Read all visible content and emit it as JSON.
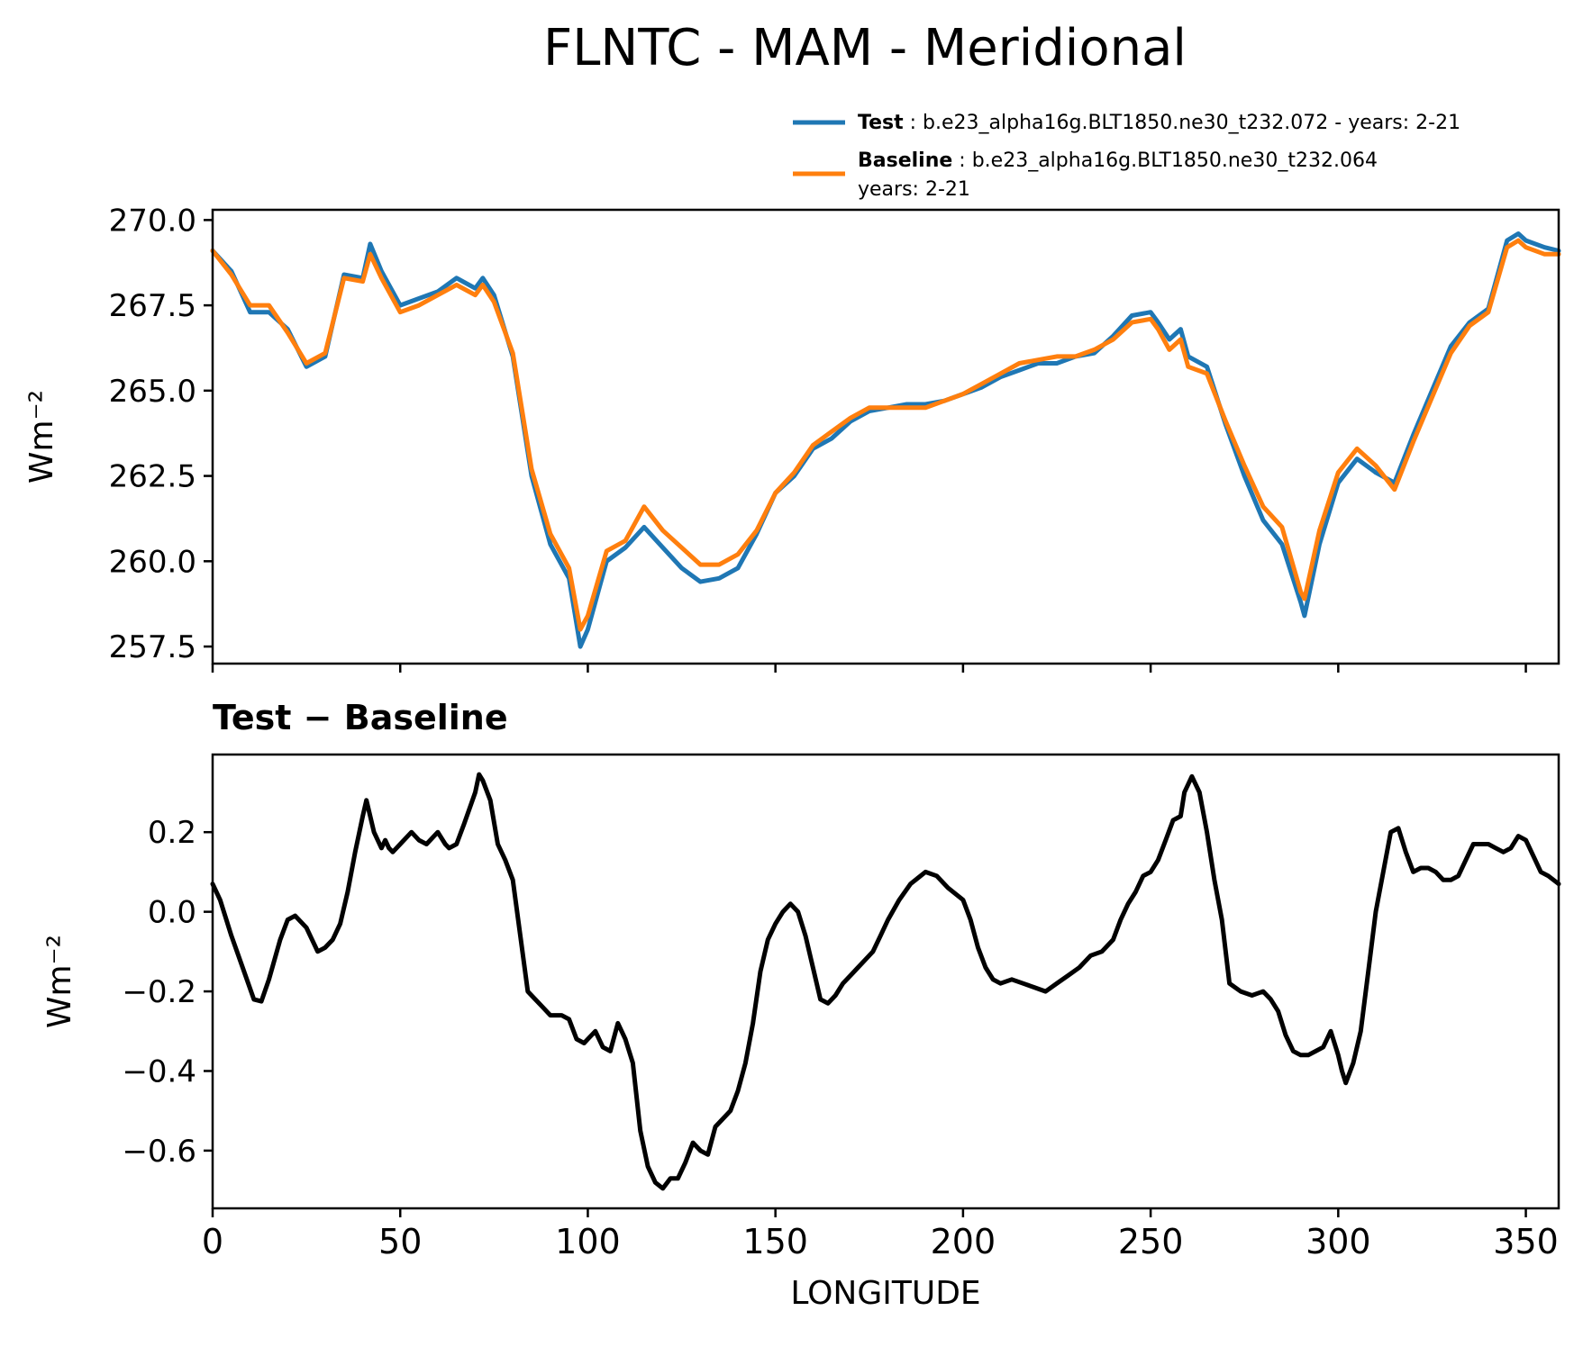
{
  "title": "FLNTC - MAM - Meridional",
  "legend": {
    "test_label": "Test",
    "test_text": ": b.e23_alpha16g.BLT1850.ne30_t232.072 - years: 2-21",
    "baseline_label": "Baseline",
    "baseline_text": ": b.e23_alpha16g.BLT1850.ne30_t232.064",
    "baseline_text2": "years: 2-21"
  },
  "diff_title": "Test − Baseline",
  "colors": {
    "test": "#1f77b4",
    "baseline": "#ff7f0e",
    "diff": "#000000"
  },
  "chart_data": [
    {
      "type": "line",
      "panel": "top",
      "ylabel": "Wm⁻²",
      "xlim": [
        0,
        358.75
      ],
      "ylim": [
        257.0,
        270.3
      ],
      "yticks": [
        257.5,
        260.0,
        262.5,
        265.0,
        267.5,
        270.0
      ],
      "ytick_labels": [
        "257.5",
        "260.0",
        "262.5",
        "265.0",
        "267.5",
        "270.0"
      ],
      "xticks": [
        0,
        50,
        100,
        150,
        200,
        250,
        300,
        350
      ],
      "series": [
        {
          "name": "Test",
          "x": [
            0,
            5,
            10,
            15,
            20,
            25,
            30,
            35,
            40,
            42,
            45,
            50,
            55,
            60,
            65,
            70,
            72,
            75,
            80,
            85,
            90,
            95,
            98,
            100,
            105,
            110,
            115,
            120,
            125,
            130,
            135,
            140,
            145,
            150,
            155,
            160,
            165,
            170,
            175,
            180,
            185,
            190,
            195,
            200,
            205,
            210,
            215,
            220,
            225,
            230,
            235,
            240,
            245,
            250,
            252,
            255,
            258,
            260,
            265,
            270,
            275,
            280,
            285,
            290,
            291,
            295,
            300,
            305,
            310,
            315,
            320,
            325,
            330,
            335,
            340,
            345,
            348,
            350,
            355,
            358.75
          ],
          "values": [
            269.1,
            268.5,
            267.3,
            267.3,
            266.8,
            265.7,
            266.0,
            268.4,
            268.3,
            269.3,
            268.5,
            267.5,
            267.7,
            267.9,
            268.3,
            268.0,
            268.3,
            267.8,
            266.0,
            262.5,
            260.5,
            259.5,
            257.5,
            258.0,
            260.0,
            260.4,
            261.0,
            260.4,
            259.8,
            259.4,
            259.5,
            259.8,
            260.8,
            262.0,
            262.5,
            263.3,
            263.6,
            264.1,
            264.4,
            264.5,
            264.6,
            264.6,
            264.7,
            264.9,
            265.1,
            265.4,
            265.6,
            265.8,
            265.8,
            266.0,
            266.1,
            266.6,
            267.2,
            267.3,
            267.0,
            266.5,
            266.8,
            266.0,
            265.7,
            264.0,
            262.5,
            261.2,
            260.5,
            258.8,
            258.4,
            260.5,
            262.3,
            263.0,
            262.6,
            262.3,
            263.7,
            265.0,
            266.3,
            267.0,
            267.4,
            269.4,
            269.6,
            269.4,
            269.2,
            269.1
          ]
        },
        {
          "name": "Baseline",
          "x": [
            0,
            5,
            10,
            15,
            20,
            25,
            30,
            35,
            40,
            42,
            45,
            50,
            55,
            60,
            65,
            70,
            72,
            75,
            80,
            85,
            90,
            95,
            98,
            100,
            105,
            110,
            115,
            120,
            125,
            130,
            135,
            140,
            145,
            150,
            155,
            160,
            165,
            170,
            175,
            180,
            185,
            190,
            195,
            200,
            205,
            210,
            215,
            220,
            225,
            230,
            235,
            240,
            245,
            250,
            252,
            255,
            258,
            260,
            265,
            270,
            275,
            280,
            285,
            290,
            291,
            295,
            300,
            305,
            310,
            315,
            320,
            325,
            330,
            335,
            340,
            345,
            348,
            350,
            355,
            358.75
          ],
          "values": [
            269.1,
            268.4,
            267.5,
            267.5,
            266.7,
            265.8,
            266.1,
            268.3,
            268.2,
            269.0,
            268.3,
            267.3,
            267.5,
            267.8,
            268.1,
            267.8,
            268.1,
            267.6,
            266.1,
            262.7,
            260.8,
            259.8,
            258.0,
            258.4,
            260.3,
            260.6,
            261.6,
            260.9,
            260.4,
            259.9,
            259.9,
            260.2,
            260.9,
            262.0,
            262.6,
            263.4,
            263.8,
            264.2,
            264.5,
            264.5,
            264.5,
            264.5,
            264.7,
            264.9,
            265.2,
            265.5,
            265.8,
            265.9,
            266.0,
            266.0,
            266.2,
            266.5,
            267.0,
            267.1,
            266.8,
            266.2,
            266.5,
            265.7,
            265.5,
            264.1,
            262.8,
            261.6,
            261.0,
            259.1,
            258.9,
            260.9,
            262.6,
            263.3,
            262.8,
            262.1,
            263.5,
            264.8,
            266.1,
            266.9,
            267.3,
            269.2,
            269.4,
            269.2,
            269.0,
            269.0
          ]
        }
      ]
    },
    {
      "type": "line",
      "panel": "bottom",
      "title": "Test − Baseline",
      "xlabel": "LONGITUDE",
      "ylabel": "Wm⁻²",
      "xlim": [
        0,
        358.75
      ],
      "ylim": [
        -0.745,
        0.395
      ],
      "yticks": [
        -0.6,
        -0.4,
        -0.2,
        0.0,
        0.2
      ],
      "ytick_labels": [
        "−0.6",
        "−0.4",
        "−0.2",
        "0.0",
        "0.2"
      ],
      "xticks": [
        0,
        50,
        100,
        150,
        200,
        250,
        300,
        350
      ],
      "xtick_labels": [
        "0",
        "50",
        "100",
        "150",
        "200",
        "250",
        "300",
        "350"
      ],
      "series": [
        {
          "name": "Test − Baseline",
          "x": [
            0,
            2,
            5,
            8,
            11,
            13,
            15,
            18,
            20,
            22,
            25,
            28,
            30,
            32,
            34,
            36,
            38,
            40,
            41,
            43,
            45,
            46,
            47,
            48,
            50,
            53,
            55,
            57,
            60,
            62,
            63,
            65,
            67,
            70,
            71,
            72,
            74,
            76,
            78,
            80,
            82,
            84,
            86,
            88,
            90,
            93,
            95,
            97,
            99,
            100,
            102,
            104,
            106,
            108,
            110,
            112,
            114,
            116,
            118,
            120,
            122,
            124,
            126,
            128,
            130,
            132,
            134,
            136,
            138,
            140,
            142,
            144,
            146,
            148,
            150,
            152,
            154,
            156,
            158,
            160,
            162,
            164,
            166,
            168,
            170,
            172,
            174,
            176,
            178,
            180,
            183,
            186,
            190,
            193,
            196,
            200,
            202,
            204,
            206,
            208,
            210,
            213,
            216,
            219,
            222,
            225,
            228,
            231,
            234,
            237,
            240,
            242,
            244,
            246,
            248,
            250,
            252,
            254,
            256,
            258,
            259,
            261,
            263,
            265,
            267,
            269,
            271,
            274,
            277,
            280,
            282,
            284,
            286,
            288,
            290,
            292,
            294,
            296,
            298,
            300,
            301,
            302,
            304,
            306,
            308,
            310,
            312,
            314,
            316,
            318,
            320,
            322,
            324,
            326,
            328,
            330,
            332,
            334,
            336,
            338,
            340,
            342,
            344,
            346,
            348,
            350,
            352,
            354,
            356,
            358.75
          ],
          "values": [
            0.07,
            0.03,
            -0.06,
            -0.14,
            -0.22,
            -0.225,
            -0.17,
            -0.07,
            -0.02,
            -0.01,
            -0.04,
            -0.1,
            -0.09,
            -0.07,
            -0.03,
            0.05,
            0.15,
            0.24,
            0.28,
            0.2,
            0.16,
            0.18,
            0.16,
            0.15,
            0.17,
            0.2,
            0.18,
            0.17,
            0.2,
            0.17,
            0.16,
            0.17,
            0.22,
            0.3,
            0.345,
            0.33,
            0.28,
            0.17,
            0.13,
            0.08,
            -0.06,
            -0.2,
            -0.22,
            -0.24,
            -0.26,
            -0.26,
            -0.27,
            -0.32,
            -0.33,
            -0.32,
            -0.3,
            -0.34,
            -0.35,
            -0.28,
            -0.32,
            -0.38,
            -0.55,
            -0.64,
            -0.68,
            -0.695,
            -0.67,
            -0.67,
            -0.63,
            -0.58,
            -0.6,
            -0.61,
            -0.54,
            -0.52,
            -0.5,
            -0.45,
            -0.38,
            -0.28,
            -0.15,
            -0.07,
            -0.03,
            0.0,
            0.02,
            0.0,
            -0.06,
            -0.14,
            -0.22,
            -0.23,
            -0.21,
            -0.18,
            -0.16,
            -0.14,
            -0.12,
            -0.1,
            -0.06,
            -0.02,
            0.03,
            0.07,
            0.1,
            0.09,
            0.06,
            0.03,
            -0.02,
            -0.09,
            -0.14,
            -0.17,
            -0.18,
            -0.17,
            -0.18,
            -0.19,
            -0.2,
            -0.18,
            -0.16,
            -0.14,
            -0.11,
            -0.1,
            -0.07,
            -0.02,
            0.02,
            0.05,
            0.09,
            0.1,
            0.13,
            0.18,
            0.23,
            0.24,
            0.3,
            0.34,
            0.3,
            0.2,
            0.08,
            -0.02,
            -0.18,
            -0.2,
            -0.21,
            -0.2,
            -0.22,
            -0.25,
            -0.31,
            -0.35,
            -0.36,
            -0.36,
            -0.35,
            -0.34,
            -0.3,
            -0.36,
            -0.4,
            -0.43,
            -0.38,
            -0.3,
            -0.15,
            0.0,
            0.1,
            0.2,
            0.21,
            0.15,
            0.1,
            0.11,
            0.11,
            0.1,
            0.08,
            0.08,
            0.09,
            0.13,
            0.17,
            0.17,
            0.17,
            0.16,
            0.15,
            0.16,
            0.19,
            0.18,
            0.14,
            0.1,
            0.09,
            0.07
          ]
        }
      ]
    }
  ]
}
